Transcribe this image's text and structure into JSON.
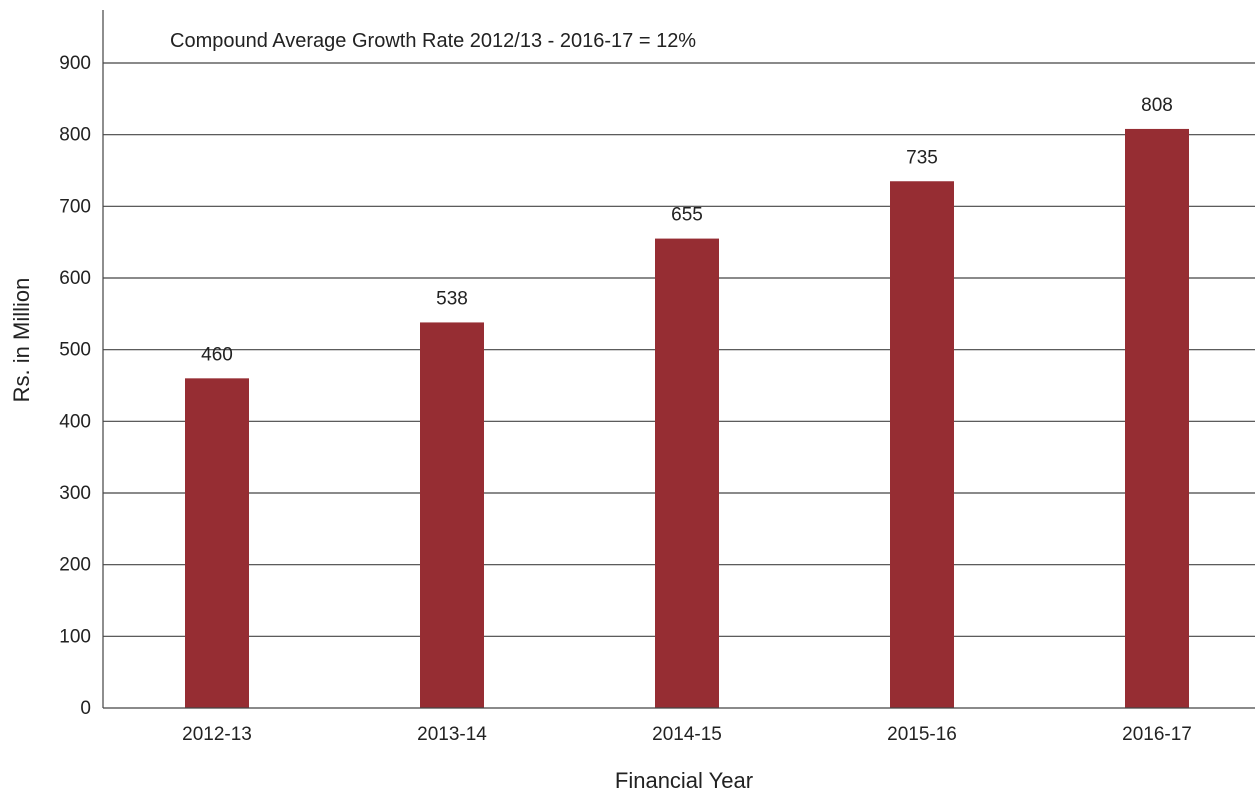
{
  "chart_data": {
    "type": "bar",
    "categories": [
      "2012-13",
      "2013-14",
      "2014-15",
      "2015-16",
      "2016-17"
    ],
    "values": [
      460,
      538,
      655,
      735,
      808
    ],
    "data_labels": [
      "460",
      "538",
      "655",
      "735",
      "808"
    ],
    "title": "",
    "annotation": "Compound Average Growth Rate 2012/13 - 2016-17 = 12%",
    "xlabel": "Financial Year",
    "ylabel": "Rs. in Million",
    "ylim": [
      0,
      900
    ],
    "yticks": [
      0,
      100,
      200,
      300,
      400,
      500,
      600,
      700,
      800,
      900
    ],
    "grid": "horizontal",
    "legend": "none",
    "bar_color": "#962d33",
    "grid_color": "#444444"
  }
}
